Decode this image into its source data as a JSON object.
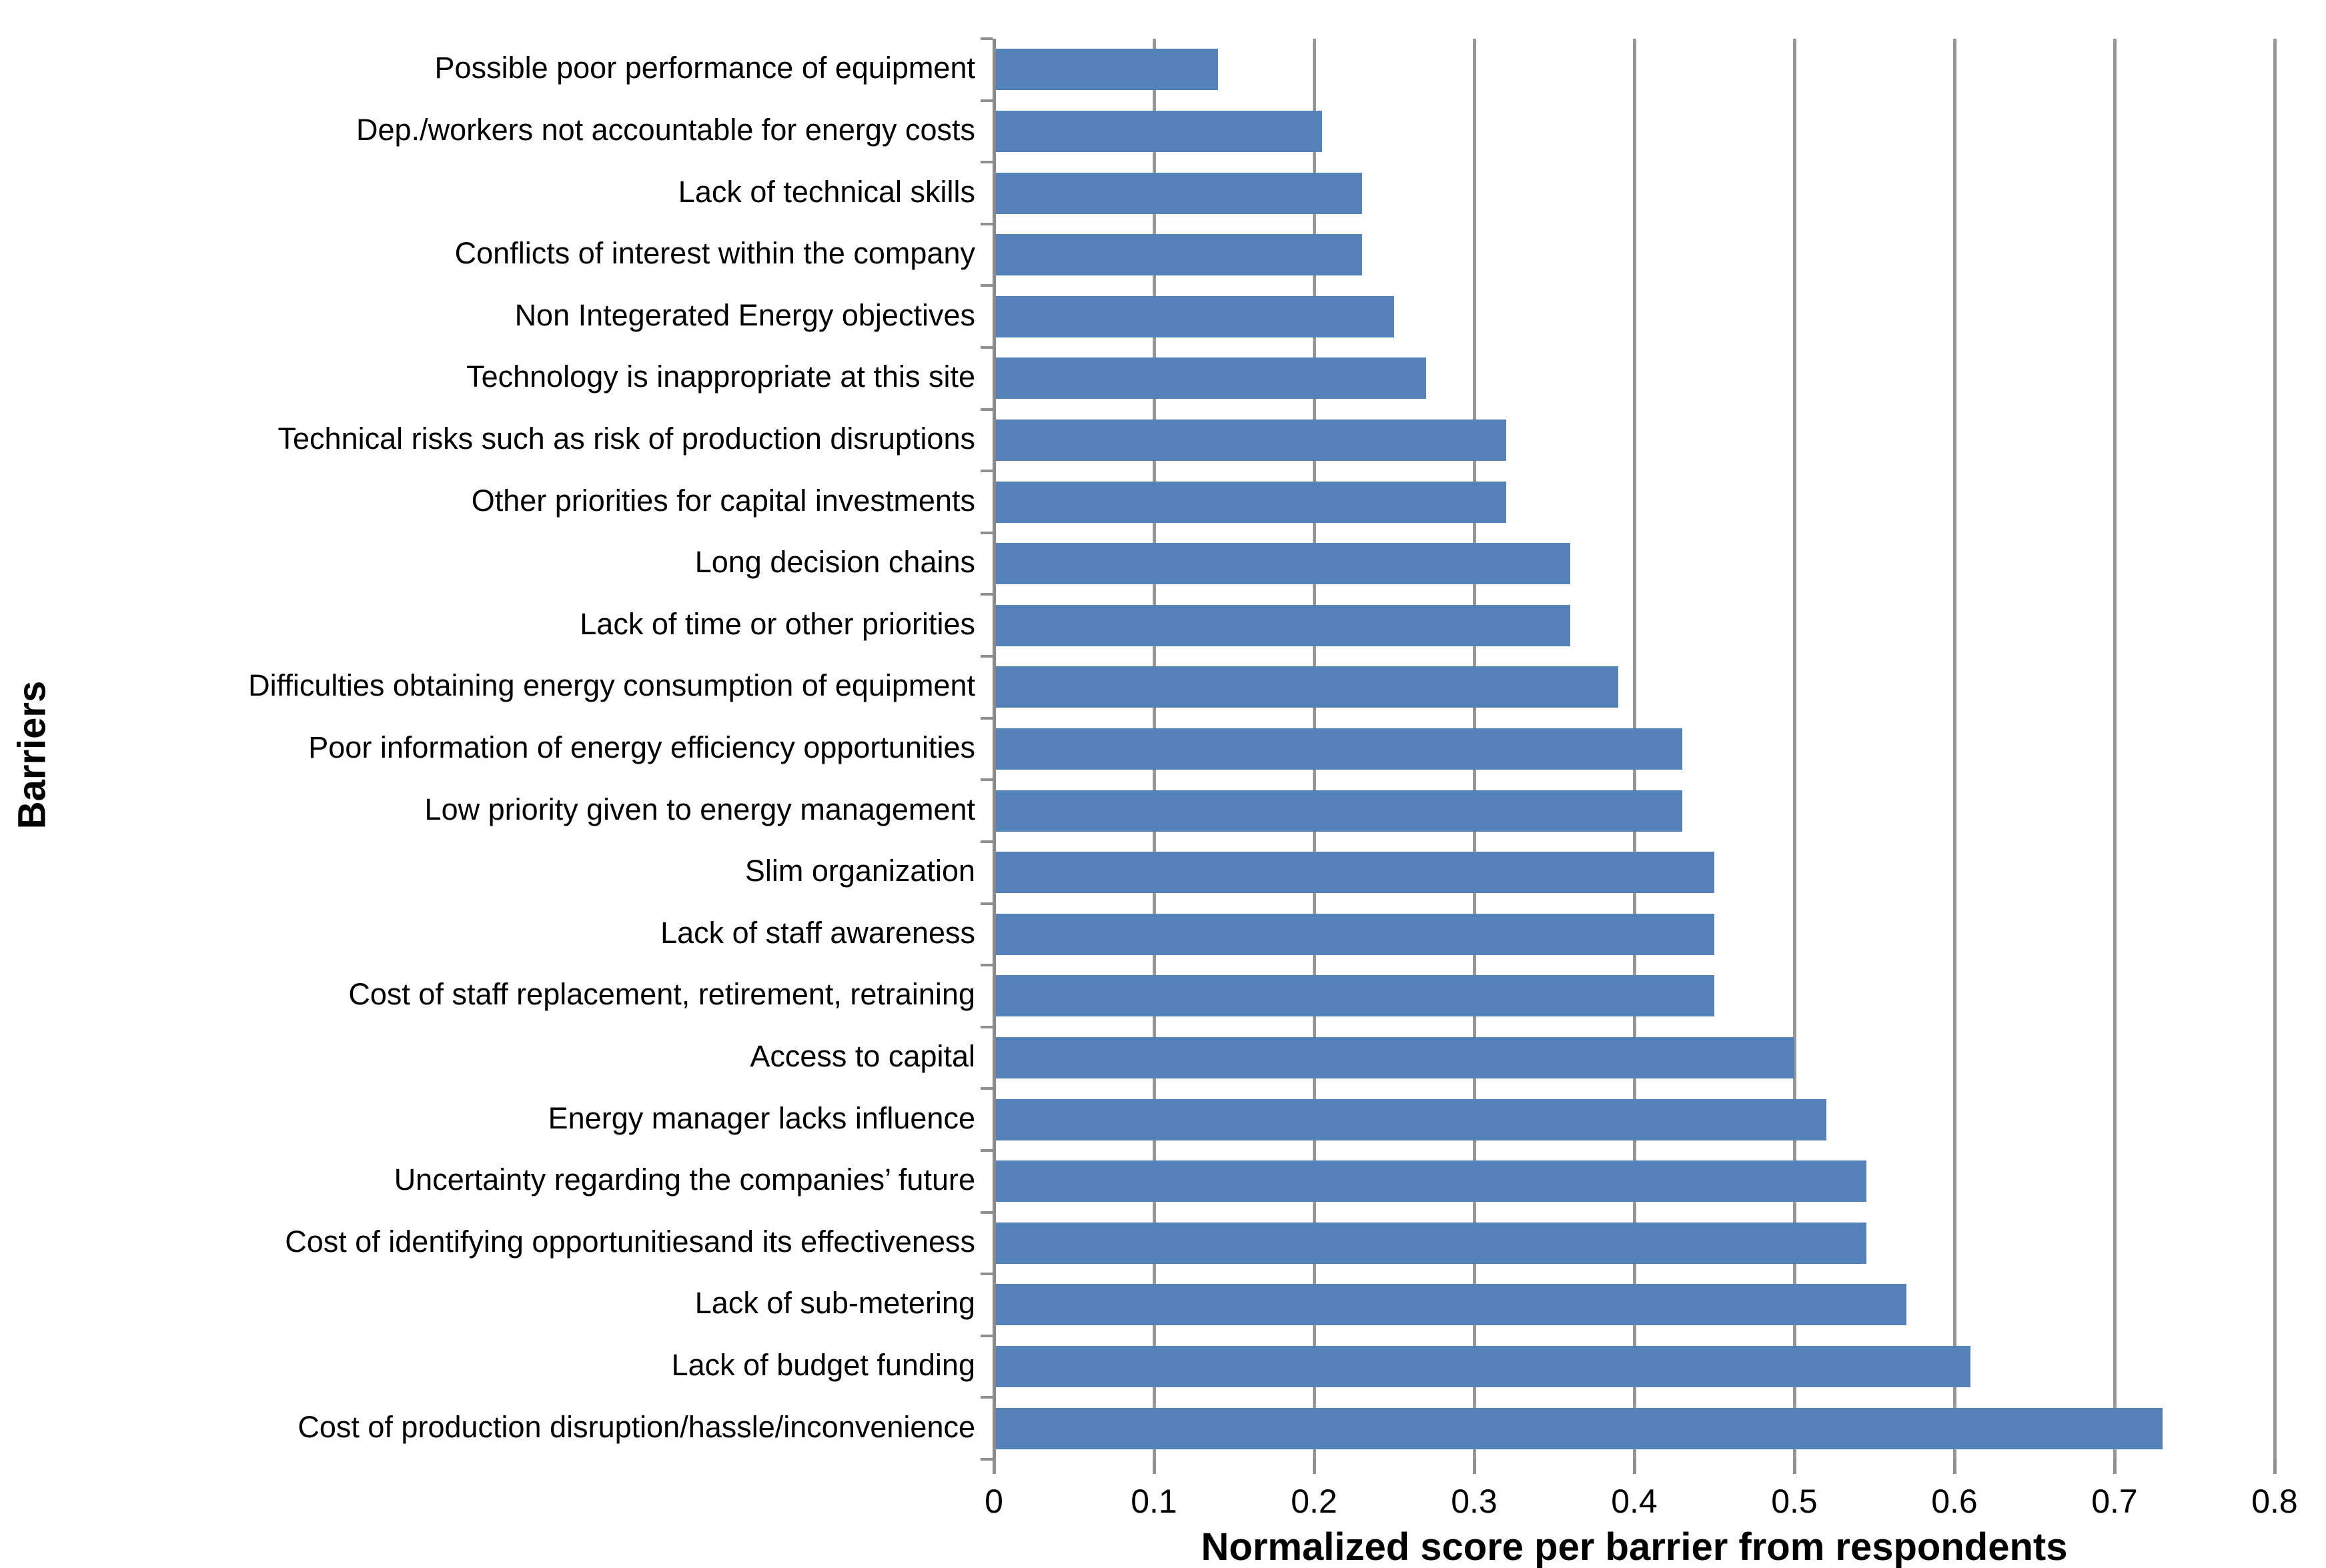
{
  "chart_data": {
    "type": "bar",
    "orientation": "horizontal",
    "title": "",
    "xlabel": "Normalized score per barrier from respondents",
    "ylabel": "Barriers",
    "xlim": [
      0,
      0.8
    ],
    "xtick_labels": [
      "0",
      "0.1",
      "0.2",
      "0.3",
      "0.4",
      "0.5",
      "0.6",
      "0.7",
      "0.8"
    ],
    "xtick_values": [
      0,
      0.1,
      0.2,
      0.3,
      0.4,
      0.5,
      0.6,
      0.7,
      0.8
    ],
    "grid": "vertical-gridlines-on",
    "legend_position": "none",
    "bar_color": "#5581BA",
    "gridline_color": "#979797",
    "axis_color": "#8a8a8a",
    "categories": [
      "Possible poor performance of equipment",
      "Dep./workers not accountable for energy costs",
      "Lack of technical skills",
      "Conflicts of interest within the company",
      "Non Integerated Energy objectives",
      "Technology is inappropriate at this site",
      "Technical risks such as risk of production disruptions",
      "Other priorities for capital investments",
      "Long decision chains",
      "Lack of time or other priorities",
      "Difficulties obtaining energy consumption of equipment",
      "Poor information of energy efficiency opportunities",
      "Low priority given to energy management",
      "Slim organization",
      "Lack of staff awareness",
      "Cost of staff replacement, retirement, retraining",
      "Access to capital",
      "Energy manager lacks influence",
      "Uncertainty regarding the companies’ future",
      "Cost of identifying opportunitiesand its effectiveness",
      "Lack of sub-metering",
      "Lack of budget funding",
      "Cost of production disruption/hassle/inconvenience"
    ],
    "values": [
      0.14,
      0.205,
      0.23,
      0.23,
      0.25,
      0.27,
      0.32,
      0.32,
      0.36,
      0.36,
      0.39,
      0.43,
      0.43,
      0.45,
      0.45,
      0.45,
      0.5,
      0.52,
      0.545,
      0.545,
      0.57,
      0.61,
      0.73
    ]
  }
}
